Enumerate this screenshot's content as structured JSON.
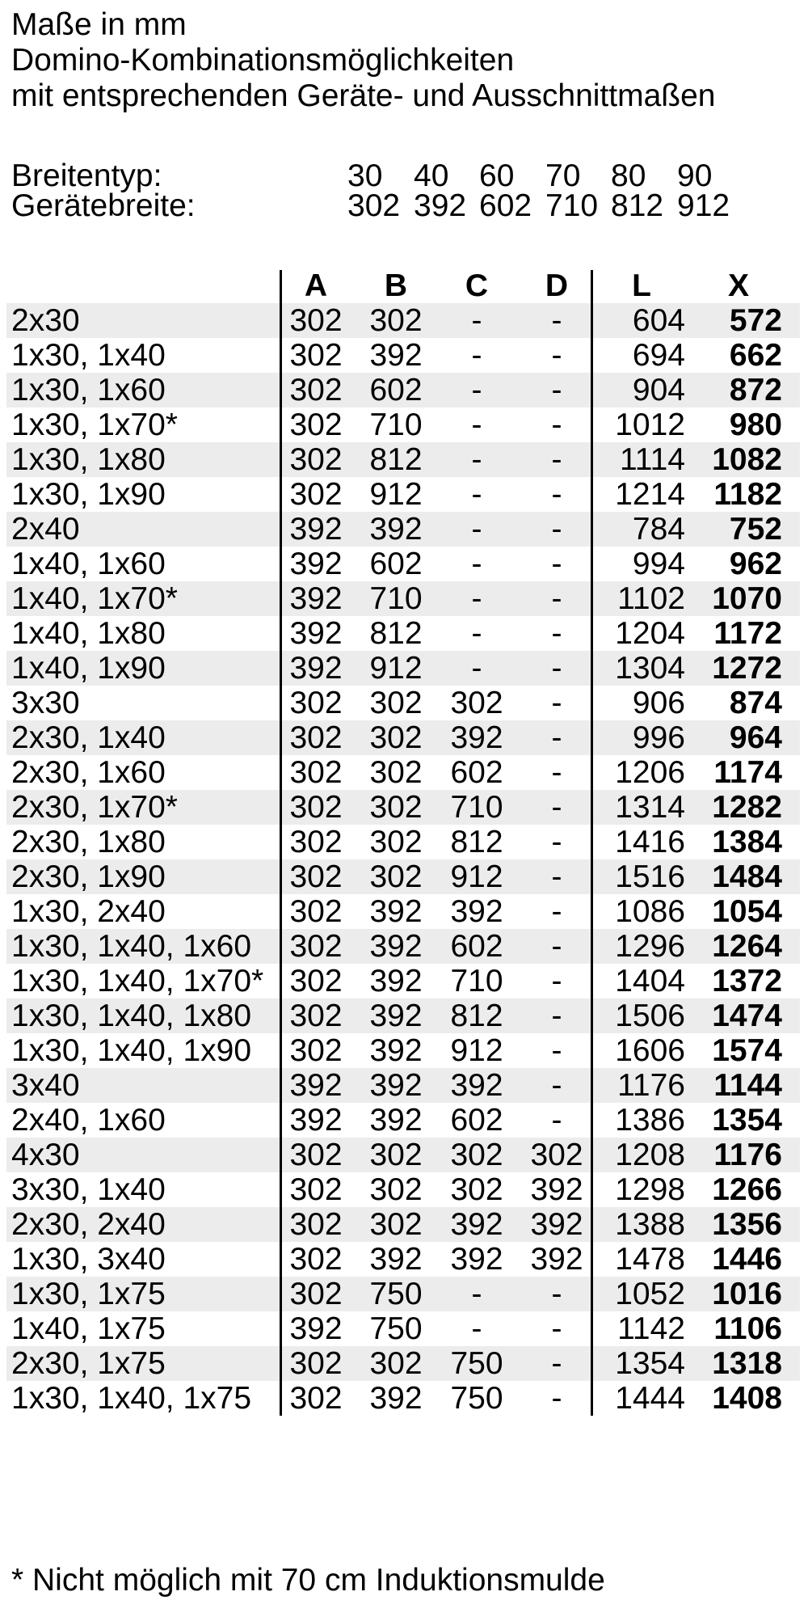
{
  "title": {
    "line1": "Maße in mm",
    "line2": "Domino-Kombinationsmöglichkeiten",
    "line3": "mit entsprechenden Geräte- und Ausschnittmaßen"
  },
  "width_info": {
    "breitentyp_label": "Breitentyp:",
    "breitentyp_values": [
      "30",
      "40",
      "60",
      "70",
      "80",
      "90"
    ],
    "geraetebreite_label": "Gerätebreite:",
    "geraetebreite_values": [
      "302",
      "392",
      "602",
      "710",
      "812",
      "912"
    ]
  },
  "table": {
    "columns": [
      "A",
      "B",
      "C",
      "D",
      "L",
      "X"
    ],
    "rows": [
      {
        "combination": "2x30",
        "A": "302",
        "B": "302",
        "C": "-",
        "D": "-",
        "L": "604",
        "X": "572"
      },
      {
        "combination": "1x30, 1x40",
        "A": "302",
        "B": "392",
        "C": "-",
        "D": "-",
        "L": "694",
        "X": "662"
      },
      {
        "combination": "1x30, 1x60",
        "A": "302",
        "B": "602",
        "C": "-",
        "D": "-",
        "L": "904",
        "X": "872"
      },
      {
        "combination": "1x30, 1x70*",
        "A": "302",
        "B": "710",
        "C": "-",
        "D": "-",
        "L": "1012",
        "X": "980"
      },
      {
        "combination": "1x30, 1x80",
        "A": "302",
        "B": "812",
        "C": "-",
        "D": "-",
        "L": "1114",
        "X": "1082"
      },
      {
        "combination": "1x30, 1x90",
        "A": "302",
        "B": "912",
        "C": "-",
        "D": "-",
        "L": "1214",
        "X": "1182"
      },
      {
        "combination": "2x40",
        "A": "392",
        "B": "392",
        "C": "-",
        "D": "-",
        "L": "784",
        "X": "752"
      },
      {
        "combination": "1x40, 1x60",
        "A": "392",
        "B": "602",
        "C": "-",
        "D": "-",
        "L": "994",
        "X": "962"
      },
      {
        "combination": "1x40, 1x70*",
        "A": "392",
        "B": "710",
        "C": "-",
        "D": "-",
        "L": "1102",
        "X": "1070"
      },
      {
        "combination": "1x40, 1x80",
        "A": "392",
        "B": "812",
        "C": "-",
        "D": "-",
        "L": "1204",
        "X": "1172"
      },
      {
        "combination": "1x40, 1x90",
        "A": "392",
        "B": "912",
        "C": "-",
        "D": "-",
        "L": "1304",
        "X": "1272"
      },
      {
        "combination": "3x30",
        "A": "302",
        "B": "302",
        "C": "302",
        "D": "-",
        "L": "906",
        "X": "874"
      },
      {
        "combination": "2x30, 1x40",
        "A": "302",
        "B": "302",
        "C": "392",
        "D": "-",
        "L": "996",
        "X": "964"
      },
      {
        "combination": "2x30, 1x60",
        "A": "302",
        "B": "302",
        "C": "602",
        "D": "-",
        "L": "1206",
        "X": "1174"
      },
      {
        "combination": "2x30, 1x70*",
        "A": "302",
        "B": "302",
        "C": "710",
        "D": "-",
        "L": "1314",
        "X": "1282"
      },
      {
        "combination": "2x30, 1x80",
        "A": "302",
        "B": "302",
        "C": "812",
        "D": "-",
        "L": "1416",
        "X": "1384"
      },
      {
        "combination": "2x30, 1x90",
        "A": "302",
        "B": "302",
        "C": "912",
        "D": "-",
        "L": "1516",
        "X": "1484"
      },
      {
        "combination": "1x30, 2x40",
        "A": "302",
        "B": "392",
        "C": "392",
        "D": "-",
        "L": "1086",
        "X": "1054"
      },
      {
        "combination": "1x30, 1x40, 1x60",
        "A": "302",
        "B": "392",
        "C": "602",
        "D": "-",
        "L": "1296",
        "X": "1264"
      },
      {
        "combination": "1x30, 1x40, 1x70*",
        "A": "302",
        "B": "392",
        "C": "710",
        "D": "-",
        "L": "1404",
        "X": "1372"
      },
      {
        "combination": "1x30, 1x40, 1x80",
        "A": "302",
        "B": "392",
        "C": "812",
        "D": "-",
        "L": "1506",
        "X": "1474"
      },
      {
        "combination": "1x30, 1x40, 1x90",
        "A": "302",
        "B": "392",
        "C": "912",
        "D": "-",
        "L": "1606",
        "X": "1574"
      },
      {
        "combination": "3x40",
        "A": "392",
        "B": "392",
        "C": "392",
        "D": "-",
        "L": "1176",
        "X": "1144"
      },
      {
        "combination": "2x40, 1x60",
        "A": "392",
        "B": "392",
        "C": "602",
        "D": "-",
        "L": "1386",
        "X": "1354"
      },
      {
        "combination": "4x30",
        "A": "302",
        "B": "302",
        "C": "302",
        "D": "302",
        "L": "1208",
        "X": "1176"
      },
      {
        "combination": "3x30, 1x40",
        "A": "302",
        "B": "302",
        "C": "302",
        "D": "392",
        "L": "1298",
        "X": "1266"
      },
      {
        "combination": "2x30, 2x40",
        "A": "302",
        "B": "302",
        "C": "392",
        "D": "392",
        "L": "1388",
        "X": "1356"
      },
      {
        "combination": "1x30, 3x40",
        "A": "302",
        "B": "392",
        "C": "392",
        "D": "392",
        "L": "1478",
        "X": "1446"
      },
      {
        "combination": "1x30, 1x75",
        "A": "302",
        "B": "750",
        "C": "-",
        "D": "-",
        "L": "1052",
        "X": "1016"
      },
      {
        "combination": "1x40, 1x75",
        "A": "392",
        "B": "750",
        "C": "-",
        "D": "-",
        "L": "1142",
        "X": "1106"
      },
      {
        "combination": "2x30, 1x75",
        "A": "302",
        "B": "302",
        "C": "750",
        "D": "-",
        "L": "1354",
        "X": "1318"
      },
      {
        "combination": "1x30, 1x40, 1x75",
        "A": "302",
        "B": "392",
        "C": "750",
        "D": "-",
        "L": "1444",
        "X": "1408"
      }
    ]
  },
  "footnote": "* Nicht möglich mit 70 cm Induktionsmulde",
  "colors": {
    "row_stripe": "#ececec",
    "text": "#000000",
    "rule": "#000000"
  }
}
